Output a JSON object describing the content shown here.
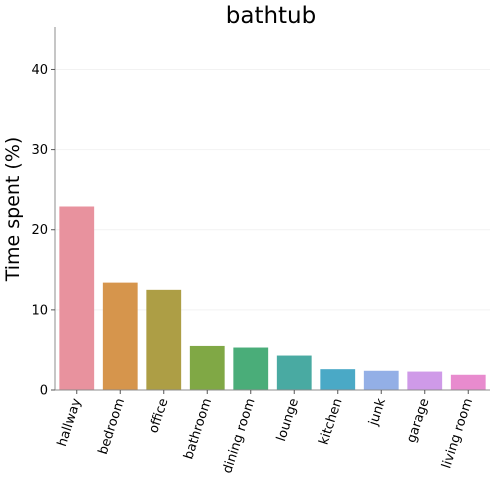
{
  "chart_data": {
    "type": "bar",
    "title": "bathtub",
    "xlabel": "",
    "ylabel": "Time spent (%)",
    "ylim": [
      0,
      45.3
    ],
    "yticks": [
      0,
      10,
      20,
      30,
      40
    ],
    "grid": true,
    "categories": [
      "hallway",
      "bedroom",
      "office",
      "bathroom",
      "dining room",
      "lounge",
      "kitchen",
      "junk",
      "garage",
      "living room"
    ],
    "values": [
      22.9,
      13.4,
      12.5,
      5.5,
      5.3,
      4.3,
      2.6,
      2.4,
      2.3,
      1.9
    ],
    "colors": [
      "#e8929e",
      "#d6954c",
      "#ad9e45",
      "#80a845",
      "#4aad79",
      "#49aaa2",
      "#4aa9c6",
      "#93afe6",
      "#cf9ae8",
      "#e88bce"
    ]
  }
}
